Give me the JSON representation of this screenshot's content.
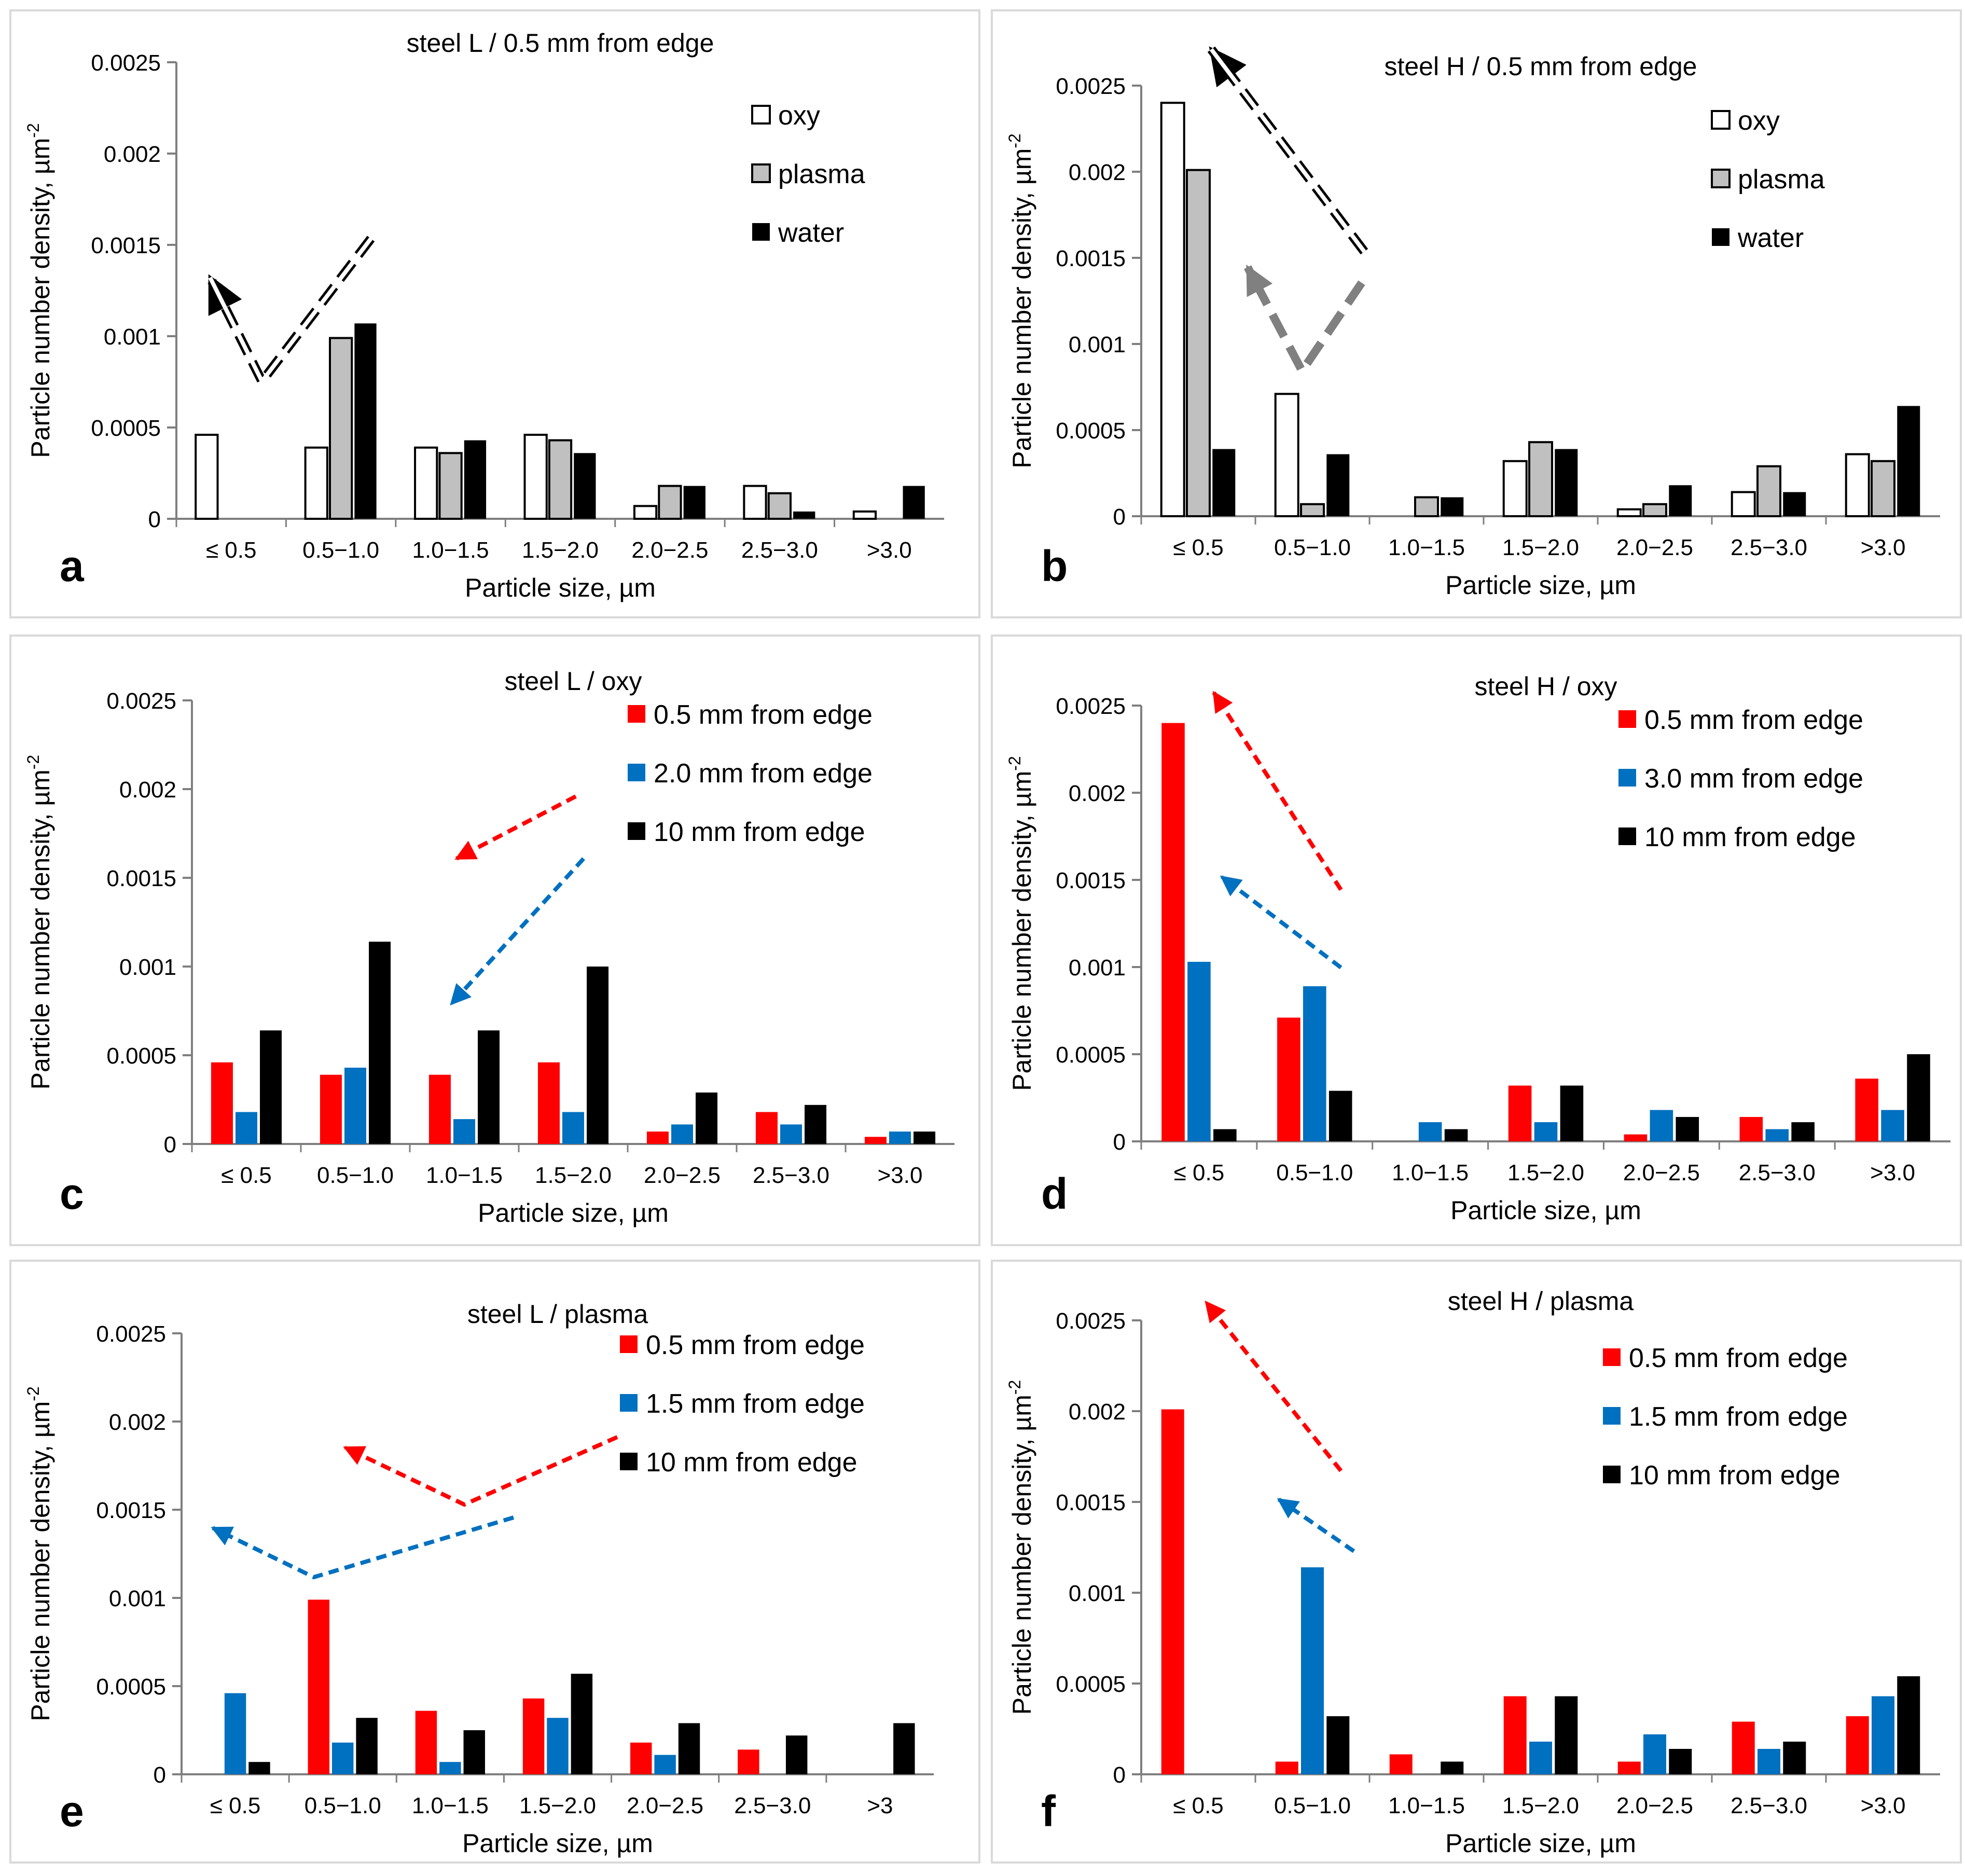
{
  "colors": {
    "oxy_fill": "#ffffff",
    "plasma_fill": "#c0c0c0",
    "water_fill": "#000000",
    "red": "#ff0000",
    "blue": "#0070c0",
    "black": "#000000",
    "grey_arrow": "#808080"
  },
  "common": {
    "ylabel": "Particle number density, µm",
    "ylabel_sup": "-2",
    "xlabel": "Particle size, µm",
    "yticks": [
      "0",
      "0.0005",
      "0.001",
      "0.0015",
      "0.002",
      "0.0025"
    ]
  },
  "chart_data": [
    {
      "panel": "a",
      "type": "bar",
      "title": "steel L / 0.5 mm from edge",
      "xlabel": "Particle size, µm",
      "ylabel": "Particle number density, µm-2",
      "ylim": [
        0,
        0.0025
      ],
      "legend_position": "top-right",
      "categories": [
        "≤ 0.5",
        "0.5−1.0",
        "1.0−1.5",
        "1.5−2.0",
        "2.0−2.5",
        "2.5−3.0",
        ">3.0"
      ],
      "series": [
        {
          "name": "oxy",
          "color": "#ffffff",
          "values": [
            0.00046,
            0.00039,
            0.00039,
            0.00046,
            7e-05,
            0.00018,
            4e-05
          ]
        },
        {
          "name": "plasma",
          "color": "#c0c0c0",
          "values": [
            0,
            0.00099,
            0.00036,
            0.00043,
            0.00018,
            0.00014,
            0
          ]
        },
        {
          "name": "water",
          "color": "#000000",
          "values": [
            0,
            0.00107,
            0.00043,
            0.00036,
            0.00018,
            4e-05,
            0.00018
          ]
        }
      ]
    },
    {
      "panel": "b",
      "type": "bar",
      "title": "steel H / 0.5 mm from edge",
      "xlabel": "Particle size, µm",
      "ylabel": "Particle number density, µm-2",
      "ylim": [
        0,
        0.0025
      ],
      "legend_position": "top-right",
      "categories": [
        "≤ 0.5",
        "0.5−1.0",
        "1.0−1.5",
        "1.5−2.0",
        "2.0−2.5",
        "2.5−3.0",
        ">3.0"
      ],
      "series": [
        {
          "name": "oxy",
          "color": "#ffffff",
          "values": [
            0.0024,
            0.00071,
            0,
            0.00032,
            4e-05,
            0.00014,
            0.00036
          ]
        },
        {
          "name": "plasma",
          "color": "#c0c0c0",
          "values": [
            0.00201,
            7e-05,
            0.00011,
            0.00043,
            7e-05,
            0.00029,
            0.00032
          ]
        },
        {
          "name": "water",
          "color": "#000000",
          "values": [
            0.00039,
            0.00036,
            0.00011,
            0.00039,
            0.00018,
            0.00014,
            0.00064
          ]
        }
      ]
    },
    {
      "panel": "c",
      "type": "bar",
      "title": "steel L / oxy",
      "xlabel": "Particle size, µm",
      "ylabel": "Particle number density, µm-2",
      "ylim": [
        0,
        0.0025
      ],
      "legend_position": "top-right",
      "categories": [
        "≤ 0.5",
        "0.5−1.0",
        "1.0−1.5",
        "1.5−2.0",
        "2.0−2.5",
        "2.5−3.0",
        ">3.0"
      ],
      "series": [
        {
          "name": "0.5 mm from edge",
          "color": "#ff0000",
          "values": [
            0.00046,
            0.00039,
            0.00039,
            0.00046,
            7e-05,
            0.00018,
            4e-05
          ]
        },
        {
          "name": "2.0 mm from edge",
          "color": "#0070c0",
          "values": [
            0.00018,
            0.00043,
            0.00014,
            0.00018,
            0.00011,
            0.00011,
            7e-05
          ]
        },
        {
          "name": "10 mm from edge",
          "color": "#000000",
          "values": [
            0.00064,
            0.00114,
            0.00064,
            0.001,
            0.00029,
            0.00022,
            7e-05
          ]
        }
      ]
    },
    {
      "panel": "d",
      "type": "bar",
      "title": "steel H / oxy",
      "xlabel": "Particle size, µm",
      "ylabel": "Particle number density, µm-2",
      "ylim": [
        0,
        0.0025
      ],
      "legend_position": "top-right",
      "categories": [
        "≤ 0.5",
        "0.5−1.0",
        "1.0−1.5",
        "1.5−2.0",
        "2.0−2.5",
        "2.5−3.0",
        ">3.0"
      ],
      "series": [
        {
          "name": "0.5 mm from edge",
          "color": "#ff0000",
          "values": [
            0.0024,
            0.00071,
            0,
            0.00032,
            4e-05,
            0.00014,
            0.00036
          ]
        },
        {
          "name": "3.0 mm from edge",
          "color": "#0070c0",
          "values": [
            0.00103,
            0.00089,
            0.00011,
            0.00011,
            0.00018,
            7e-05,
            0.00018
          ]
        },
        {
          "name": "10 mm from edge",
          "color": "#000000",
          "values": [
            7e-05,
            0.00029,
            7e-05,
            0.00032,
            0.00014,
            0.00011,
            0.0005
          ]
        }
      ]
    },
    {
      "panel": "e",
      "type": "bar",
      "title": "steel L / plasma",
      "xlabel": "Particle size, µm",
      "ylabel": "Particle number density, µm-2",
      "ylim": [
        0,
        0.0025
      ],
      "legend_position": "top-right",
      "categories": [
        "≤ 0.5",
        "0.5−1.0",
        "1.0−1.5",
        "1.5−2.0",
        "2.0−2.5",
        "2.5−3.0",
        ">3"
      ],
      "series": [
        {
          "name": "0.5 mm from edge",
          "color": "#ff0000",
          "values": [
            0,
            0.00099,
            0.00036,
            0.00043,
            0.00018,
            0.00014,
            0
          ]
        },
        {
          "name": "1.5 mm from edge",
          "color": "#0070c0",
          "values": [
            0.00046,
            0.00018,
            7e-05,
            0.00032,
            0.00011,
            0,
            0
          ]
        },
        {
          "name": "10 mm from edge",
          "color": "#000000",
          "values": [
            7e-05,
            0.00032,
            0.00025,
            0.00057,
            0.00029,
            0.00022,
            0.00029
          ]
        }
      ]
    },
    {
      "panel": "f",
      "type": "bar",
      "title": "steel H / plasma",
      "xlabel": "Particle size, µm",
      "ylabel": "Particle number density, µm-2",
      "ylim": [
        0,
        0.0025
      ],
      "legend_position": "top-right",
      "categories": [
        "≤ 0.5",
        "0.5−1.0",
        "1.0−1.5",
        "1.5−2.0",
        "2.0−2.5",
        "2.5−3.0",
        ">3.0"
      ],
      "series": [
        {
          "name": "0.5 mm from edge",
          "color": "#ff0000",
          "values": [
            0.00201,
            7e-05,
            0.00011,
            0.00043,
            7e-05,
            0.00029,
            0.00032
          ]
        },
        {
          "name": "1.5 mm from edge",
          "color": "#0070c0",
          "values": [
            0,
            0.00114,
            0,
            0.00018,
            0.00022,
            0.00014,
            0.00043
          ]
        },
        {
          "name": "10 mm from edge",
          "color": "#000000",
          "values": [
            0,
            0.00032,
            7e-05,
            0.00043,
            0.00014,
            0.00018,
            0.00054
          ]
        }
      ]
    }
  ]
}
